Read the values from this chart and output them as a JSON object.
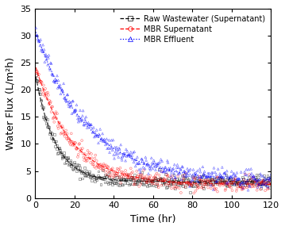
{
  "title": "",
  "xlabel": "Time (hr)",
  "ylabel": "Water Flux (L/m²h)",
  "xlim": [
    0,
    120
  ],
  "ylim": [
    0,
    35
  ],
  "xticks": [
    0,
    20,
    40,
    60,
    80,
    100,
    120
  ],
  "yticks": [
    0,
    5,
    10,
    15,
    20,
    25,
    30,
    35
  ],
  "series": [
    {
      "label": "Raw Wastewater (Supernatant)",
      "color": "black",
      "marker": "s",
      "linestyle": "--",
      "a": 20.0,
      "b": 0.1,
      "c": 3.0,
      "noise": 0.6,
      "n_points": 400,
      "t_max": 120
    },
    {
      "label": "MBR Supernatant",
      "color": "red",
      "marker": "o",
      "linestyle": "--",
      "a": 22.0,
      "b": 0.055,
      "c": 2.5,
      "noise": 0.7,
      "n_points": 400,
      "t_max": 120
    },
    {
      "label": "MBR Effluent",
      "color": "blue",
      "marker": "^",
      "linestyle": ":",
      "a": 28.0,
      "b": 0.038,
      "c": 3.0,
      "noise": 0.8,
      "n_points": 400,
      "t_max": 120
    }
  ],
  "legend_fontsize": 7,
  "axis_fontsize": 9,
  "tick_fontsize": 8,
  "figure_width": 3.59,
  "figure_height": 2.9,
  "dpi": 100
}
